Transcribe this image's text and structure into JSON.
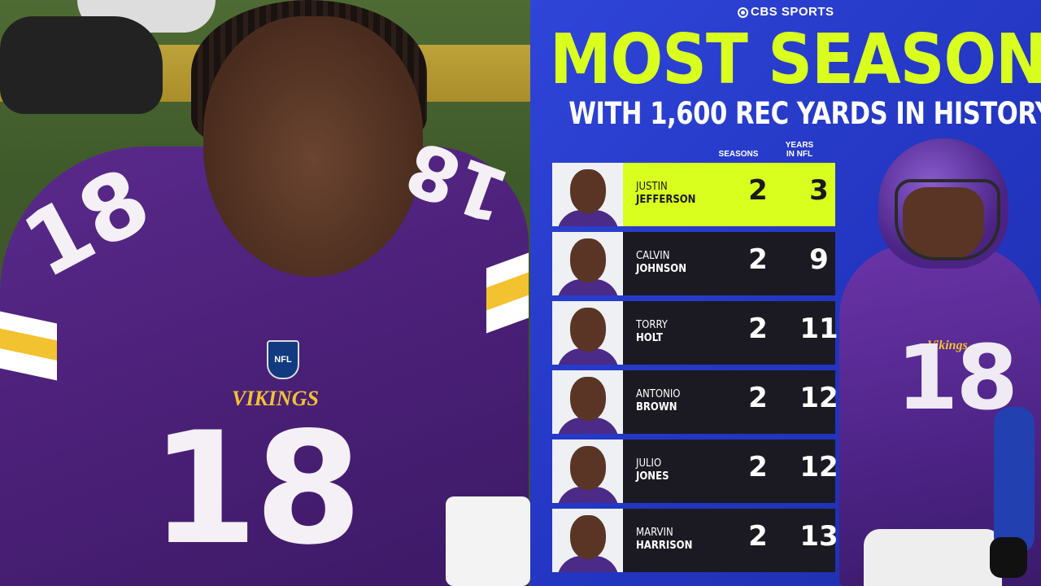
{
  "left_photo": {
    "jersey_number": "18",
    "team_wordmark": "VIKINGS",
    "shield_text": "NFL"
  },
  "graphic": {
    "brand": "CBS SPORTS",
    "title": "MOST SEASONS",
    "subtitle": "WITH 1,600 REC YARDS IN HISTORY",
    "columns": {
      "seasons": "SEASONS",
      "years_line1": "YEARS",
      "years_line2": "IN NFL"
    },
    "rows": [
      {
        "first": "JUSTIN",
        "last": "JEFFERSON",
        "seasons": "2",
        "years": "3",
        "highlight": true
      },
      {
        "first": "CALVIN",
        "last": "JOHNSON",
        "seasons": "2",
        "years": "9"
      },
      {
        "first": "TORRY",
        "last": "HOLT",
        "seasons": "2",
        "years": "11"
      },
      {
        "first": "ANTONIO",
        "last": "BROWN",
        "seasons": "2",
        "years": "12"
      },
      {
        "first": "JULIO",
        "last": "JONES",
        "seasons": "2",
        "years": "12"
      },
      {
        "first": "MARVIN",
        "last": "HARRISON",
        "seasons": "2",
        "years": "13"
      }
    ],
    "player_number": "18",
    "player_wordmark": "Vikings",
    "colors": {
      "panel_blue": "#2336c2",
      "accent_lime": "#d9ff1f",
      "row_dark": "#1b1a22",
      "vikings_purple": "#4f2683",
      "vikings_gold": "#f2c230"
    }
  }
}
